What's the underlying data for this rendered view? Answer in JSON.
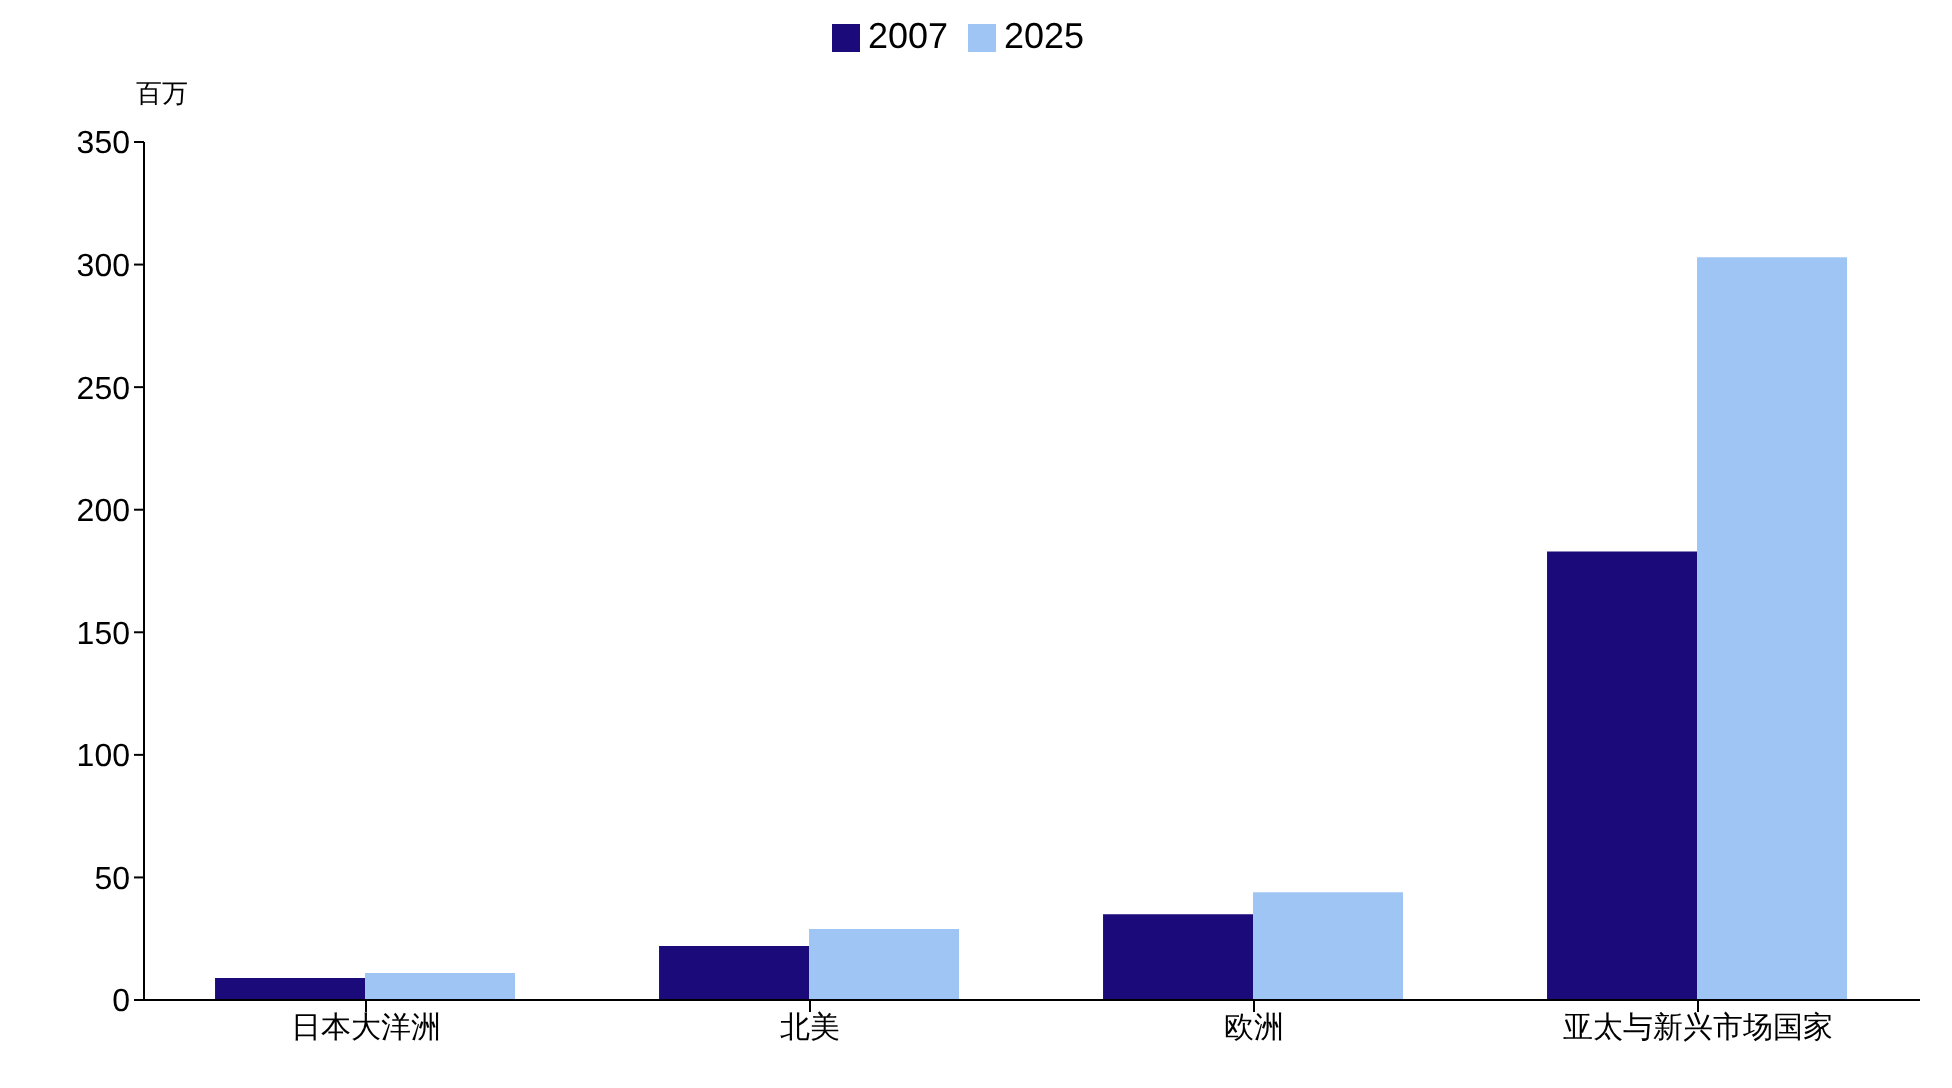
{
  "chart_data": {
    "type": "bar",
    "ylabel": "百万",
    "categories": [
      "日本大洋洲",
      "北美",
      "欧洲",
      "亚太与新兴市场国家"
    ],
    "series": [
      {
        "name": "2007",
        "color": "#1a0a7a",
        "values": [
          9,
          22,
          35,
          183
        ]
      },
      {
        "name": "2025",
        "color": "#9fc5f5",
        "values": [
          11,
          29,
          44,
          303
        ]
      }
    ],
    "ylim": [
      0,
      350
    ],
    "yticks": [
      0,
      50,
      100,
      150,
      200,
      250,
      300,
      350
    ],
    "grid": false,
    "legend": "top"
  }
}
